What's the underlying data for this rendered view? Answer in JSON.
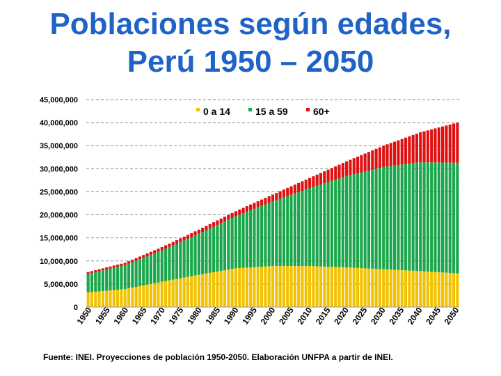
{
  "chart_data": {
    "type": "bar",
    "stacked": true,
    "title": "Poblaciones según edades,\nPerú 1950 – 2050",
    "title_lines": [
      "Poblaciones según edades,",
      "Perú 1950 – 2050"
    ],
    "source": "Fuente: INEI. Proyecciones de población 1950-2050. Elaboración UNFPA a partir de INEI.",
    "ylim": [
      0,
      45000000
    ],
    "yticks": [
      0,
      5000000,
      10000000,
      15000000,
      20000000,
      25000000,
      30000000,
      35000000,
      40000000,
      45000000
    ],
    "ytick_labels": [
      "0",
      "5,000,000",
      "10,000,000",
      "15,000,000",
      "20,000,000",
      "25,000,000",
      "30,000,000",
      "35,000,000",
      "40,000,000",
      "45,000,000"
    ],
    "xtick_labels": [
      "1950",
      "1955",
      "1960",
      "1965",
      "1970",
      "1975",
      "1980",
      "1985",
      "1990",
      "1995",
      "2000",
      "2005",
      "2010",
      "2015",
      "2020",
      "2025",
      "2030",
      "2035",
      "2040",
      "2045",
      "2050"
    ],
    "grid": true,
    "legend_position": "top-center",
    "x_start": 1950,
    "x_end": 2050,
    "series": [
      {
        "name": "0 a 14",
        "color": "#f2c200",
        "anchors": [
          [
            1950,
            3200000
          ],
          [
            1960,
            3900000
          ],
          [
            1970,
            5500000
          ],
          [
            1980,
            7000000
          ],
          [
            1990,
            8400000
          ],
          [
            2000,
            8900000
          ],
          [
            2010,
            8900000
          ],
          [
            2020,
            8600000
          ],
          [
            2030,
            8200000
          ],
          [
            2040,
            7800000
          ],
          [
            2050,
            7300000
          ]
        ]
      },
      {
        "name": "15 a 59",
        "color": "#1aa64a",
        "anchors": [
          [
            1950,
            4000000
          ],
          [
            1960,
            5200000
          ],
          [
            1970,
            6800000
          ],
          [
            1980,
            8900000
          ],
          [
            1990,
            11300000
          ],
          [
            2000,
            14000000
          ],
          [
            2010,
            16900000
          ],
          [
            2020,
            19800000
          ],
          [
            2030,
            22200000
          ],
          [
            2040,
            23600000
          ],
          [
            2050,
            24000000
          ]
        ]
      },
      {
        "name": "60+",
        "color": "#e01010",
        "anchors": [
          [
            1950,
            400000
          ],
          [
            1960,
            500000
          ],
          [
            1970,
            700000
          ],
          [
            1980,
            900000
          ],
          [
            1990,
            1100000
          ],
          [
            2000,
            1500000
          ],
          [
            2010,
            2200000
          ],
          [
            2020,
            3200000
          ],
          [
            2030,
            4600000
          ],
          [
            2040,
            6500000
          ],
          [
            2050,
            8700000
          ]
        ]
      }
    ]
  }
}
